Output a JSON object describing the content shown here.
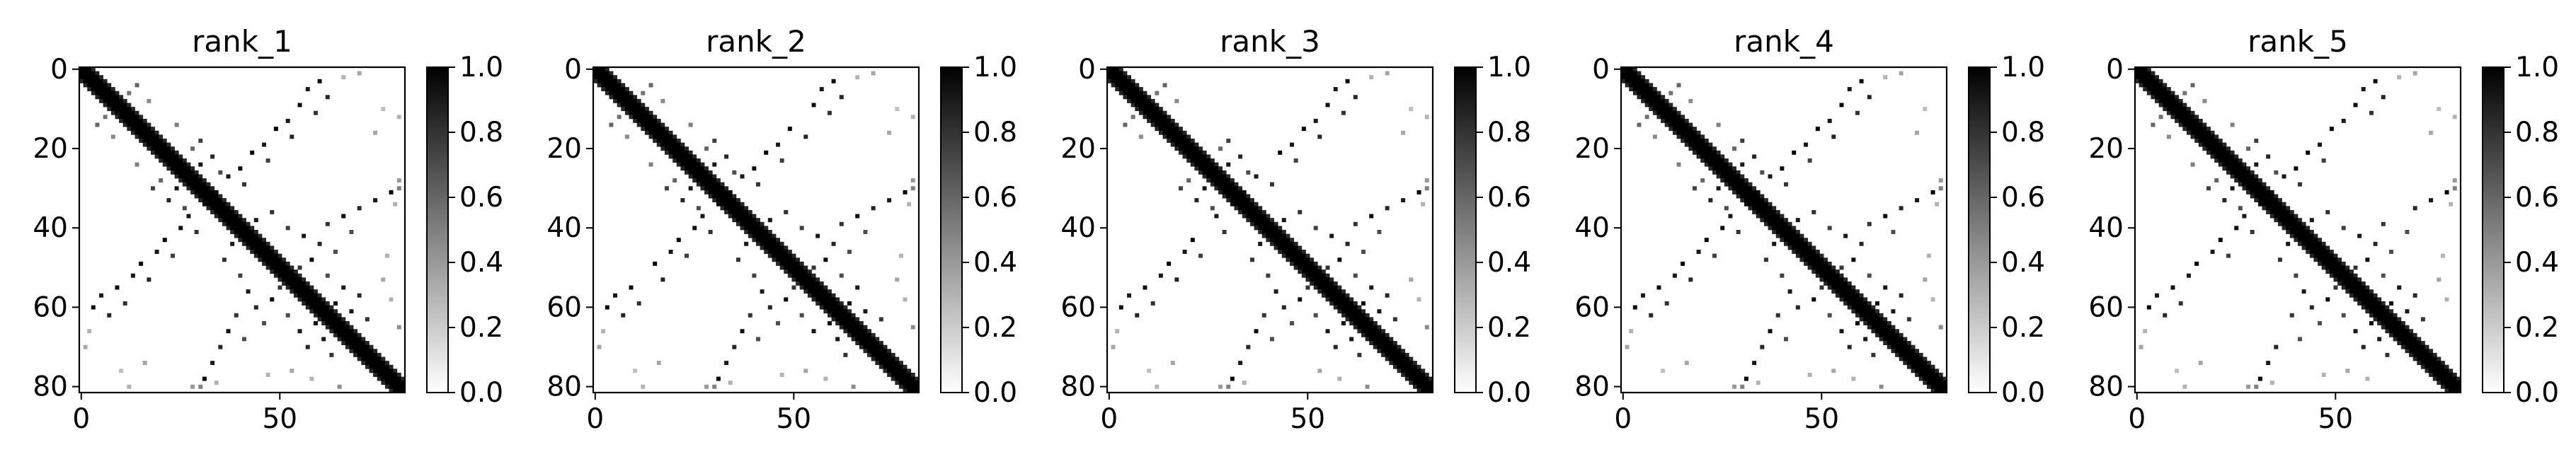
{
  "chart_data": {
    "type": "heatmap",
    "matrix_size": 82,
    "colormap": "Greys",
    "color_range": [
      0.0,
      1.0
    ],
    "colorbar_ticks": [
      "0.0",
      "0.2",
      "0.4",
      "0.6",
      "0.8",
      "1.0"
    ],
    "x_ticks": [
      "0",
      "50"
    ],
    "y_ticks": [
      "0",
      "20",
      "40",
      "60",
      "80"
    ],
    "x_tick_values": [
      0,
      50
    ],
    "y_tick_values": [
      0,
      20,
      40,
      60,
      80
    ],
    "diagonal_band_width": 3,
    "contacts": [
      {
        "i": 3,
        "j": 60,
        "value": 0.95
      },
      {
        "i": 5,
        "j": 57,
        "value": 0.9
      },
      {
        "i": 7,
        "j": 62,
        "value": 0.85
      },
      {
        "i": 9,
        "j": 55,
        "value": 0.95
      },
      {
        "i": 11,
        "j": 59,
        "value": 0.8
      },
      {
        "i": 13,
        "j": 52,
        "value": 0.9
      },
      {
        "i": 15,
        "j": 49,
        "value": 1.0
      },
      {
        "i": 17,
        "j": 53,
        "value": 0.85
      },
      {
        "i": 19,
        "j": 46,
        "value": 0.9
      },
      {
        "i": 21,
        "j": 43,
        "value": 1.0
      },
      {
        "i": 23,
        "j": 47,
        "value": 0.75
      },
      {
        "i": 25,
        "j": 40,
        "value": 0.95
      },
      {
        "i": 27,
        "j": 37,
        "value": 0.9
      },
      {
        "i": 29,
        "j": 41,
        "value": 0.8
      },
      {
        "i": 31,
        "j": 34,
        "value": 0.95
      },
      {
        "i": 24,
        "j": 30,
        "value": 0.9
      },
      {
        "i": 22,
        "j": 33,
        "value": 0.85
      },
      {
        "i": 26,
        "j": 35,
        "value": 0.7
      },
      {
        "i": 38,
        "j": 44,
        "value": 0.9
      },
      {
        "i": 36,
        "j": 48,
        "value": 0.8
      },
      {
        "i": 40,
        "j": 52,
        "value": 0.75
      },
      {
        "i": 42,
        "j": 56,
        "value": 0.9
      },
      {
        "i": 44,
        "j": 60,
        "value": 0.85
      },
      {
        "i": 46,
        "j": 64,
        "value": 0.7
      },
      {
        "i": 48,
        "j": 58,
        "value": 0.95
      },
      {
        "i": 50,
        "j": 55,
        "value": 0.8
      },
      {
        "i": 31,
        "j": 78,
        "value": 1.0
      },
      {
        "i": 33,
        "j": 74,
        "value": 0.9
      },
      {
        "i": 35,
        "j": 70,
        "value": 0.85
      },
      {
        "i": 37,
        "j": 66,
        "value": 0.95
      },
      {
        "i": 39,
        "j": 62,
        "value": 0.8
      },
      {
        "i": 41,
        "j": 68,
        "value": 0.7
      },
      {
        "i": 55,
        "j": 66,
        "value": 0.9
      },
      {
        "i": 57,
        "j": 70,
        "value": 0.85
      },
      {
        "i": 59,
        "j": 64,
        "value": 0.95
      },
      {
        "i": 61,
        "j": 68,
        "value": 0.9
      },
      {
        "i": 63,
        "j": 72,
        "value": 0.8
      },
      {
        "i": 52,
        "j": 62,
        "value": 0.7
      },
      {
        "i": 18,
        "j": 30,
        "value": 0.75
      },
      {
        "i": 20,
        "j": 28,
        "value": 0.6
      },
      {
        "i": 14,
        "j": 24,
        "value": 0.5
      },
      {
        "i": 4,
        "j": 14,
        "value": 0.6
      },
      {
        "i": 6,
        "j": 12,
        "value": 0.55
      },
      {
        "i": 8,
        "j": 17,
        "value": 0.45
      },
      {
        "i": 1,
        "j": 70,
        "value": 0.35
      },
      {
        "i": 2,
        "j": 66,
        "value": 0.3
      },
      {
        "i": 10,
        "j": 76,
        "value": 0.25
      },
      {
        "i": 12,
        "j": 80,
        "value": 0.3
      },
      {
        "i": 16,
        "j": 74,
        "value": 0.35
      },
      {
        "i": 28,
        "j": 80,
        "value": 0.4
      },
      {
        "i": 30,
        "j": 80,
        "value": 0.5
      },
      {
        "i": 34,
        "j": 79,
        "value": 0.3
      },
      {
        "i": 47,
        "j": 77,
        "value": 0.3
      },
      {
        "i": 53,
        "j": 76,
        "value": 0.35
      },
      {
        "i": 58,
        "j": 78,
        "value": 0.3
      },
      {
        "i": 65,
        "j": 80,
        "value": 0.45
      }
    ],
    "panels": [
      {
        "title": "rank_1",
        "dropped": []
      },
      {
        "title": "rank_2",
        "dropped": [
          5,
          33
        ]
      },
      {
        "title": "rank_3",
        "dropped": [
          11,
          40,
          52
        ]
      },
      {
        "title": "rank_4",
        "dropped": [
          23,
          47
        ]
      },
      {
        "title": "rank_5",
        "dropped": [
          7,
          29,
          55
        ]
      }
    ]
  }
}
